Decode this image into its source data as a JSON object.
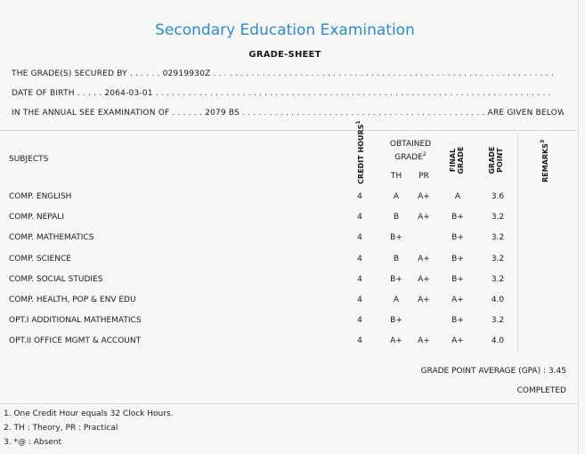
{
  "header": {
    "title": "Secondary Education Examination",
    "subtitle": "GRADE-SHEET"
  },
  "info": {
    "grades_secured_label": "THE GRADE(S) SECURED BY",
    "symbol_no": "02919930Z",
    "dob_label": "DATE OF BIRTH",
    "dob": "2064-03-01",
    "exam_label": "IN THE ANNUAL SEE EXAMINATION OF",
    "exam_year": "2079 BS",
    "given_below": "ARE GIVEN BELOW . . ."
  },
  "table": {
    "headers": {
      "subjects": "SUBJECTS",
      "credit_hours": "CREDIT HOURS",
      "credit_sup": "1",
      "obtained_grade_line1": "OBTAINED",
      "obtained_grade_line2": "GRADE",
      "obtained_sup": "2",
      "th": "TH",
      "pr": "PR",
      "final_grade_line1": "FINAL",
      "final_grade_line2": "GRADE",
      "grade_point_line1": "GRADE",
      "grade_point_line2": "POINT",
      "remarks": "REMARKS",
      "remarks_sup": "3"
    },
    "rows": [
      {
        "subject": "COMP. ENGLISH",
        "credit": "4",
        "th": "A",
        "pr": "A+",
        "final": "A",
        "gp": "3.6"
      },
      {
        "subject": "COMP. NEPALI",
        "credit": "4",
        "th": "B",
        "pr": "A+",
        "final": "B+",
        "gp": "3.2"
      },
      {
        "subject": "COMP. MATHEMATICS",
        "credit": "4",
        "th": "B+",
        "pr": "",
        "final": "B+",
        "gp": "3.2"
      },
      {
        "subject": "COMP. SCIENCE",
        "credit": "4",
        "th": "B",
        "pr": "A+",
        "final": "B+",
        "gp": "3.2"
      },
      {
        "subject": "COMP. SOCIAL STUDIES",
        "credit": "4",
        "th": "B+",
        "pr": "A+",
        "final": "B+",
        "gp": "3.2"
      },
      {
        "subject": "COMP. HEALTH, POP & ENV EDU",
        "credit": "4",
        "th": "A",
        "pr": "A+",
        "final": "A+",
        "gp": "4.0"
      },
      {
        "subject": "OPT.I ADDITIONAL MATHEMATICS",
        "credit": "4",
        "th": "B+",
        "pr": "",
        "final": "B+",
        "gp": "3.2"
      },
      {
        "subject": "OPT.II OFFICE MGMT & ACCOUNT",
        "credit": "4",
        "th": "A+",
        "pr": "A+",
        "final": "A+",
        "gp": "4.0"
      }
    ]
  },
  "summary": {
    "gpa_label": "GRADE POINT AVERAGE (GPA) : 3.45",
    "status": "COMPLETED"
  },
  "footnotes": [
    "1. One Credit Hour equals 32 Clock Hours.",
    "2. TH : Theory, PR : Practical",
    "3. *@ : Absent"
  ],
  "colors": {
    "title": "#2b8ad1",
    "background": "#f7f7f7"
  }
}
